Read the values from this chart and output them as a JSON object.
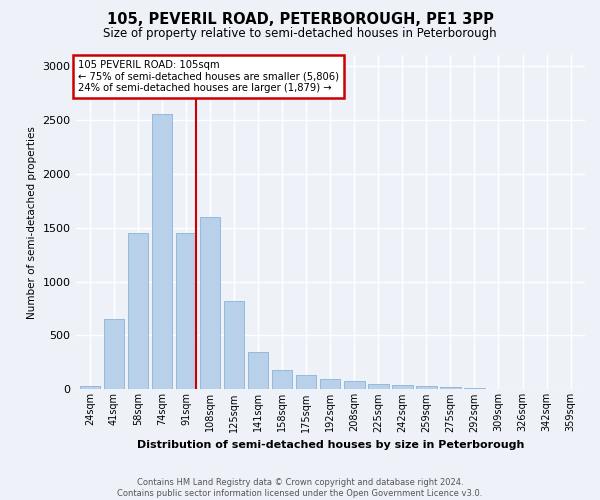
{
  "title": "105, PEVERIL ROAD, PETERBOROUGH, PE1 3PP",
  "subtitle": "Size of property relative to semi-detached houses in Peterborough",
  "xlabel": "Distribution of semi-detached houses by size in Peterborough",
  "ylabel": "Number of semi-detached properties",
  "annotation_line1": "105 PEVERIL ROAD: 105sqm",
  "annotation_line2": "← 75% of semi-detached houses are smaller (5,806)",
  "annotation_line3": "24% of semi-detached houses are larger (1,879) →",
  "footer_line1": "Contains HM Land Registry data © Crown copyright and database right 2024.",
  "footer_line2": "Contains public sector information licensed under the Open Government Licence v3.0.",
  "bar_color": "#b8d0ea",
  "bar_edge_color": "#8ab4d8",
  "red_line_x": 4,
  "annotation_box_color": "#ffffff",
  "annotation_box_edge": "#cc0000",
  "background_color": "#eef2f8",
  "categories": [
    "24sqm",
    "41sqm",
    "58sqm",
    "74sqm",
    "91sqm",
    "108sqm",
    "125sqm",
    "141sqm",
    "158sqm",
    "175sqm",
    "192sqm",
    "208sqm",
    "225sqm",
    "242sqm",
    "259sqm",
    "275sqm",
    "292sqm",
    "309sqm",
    "326sqm",
    "342sqm",
    "359sqm"
  ],
  "values": [
    30,
    650,
    1450,
    2550,
    1450,
    1600,
    820,
    350,
    180,
    130,
    100,
    75,
    50,
    40,
    30,
    20,
    12,
    8,
    5,
    4,
    3
  ],
  "ylim": [
    0,
    3100
  ],
  "yticks": [
    0,
    500,
    1000,
    1500,
    2000,
    2500,
    3000
  ]
}
